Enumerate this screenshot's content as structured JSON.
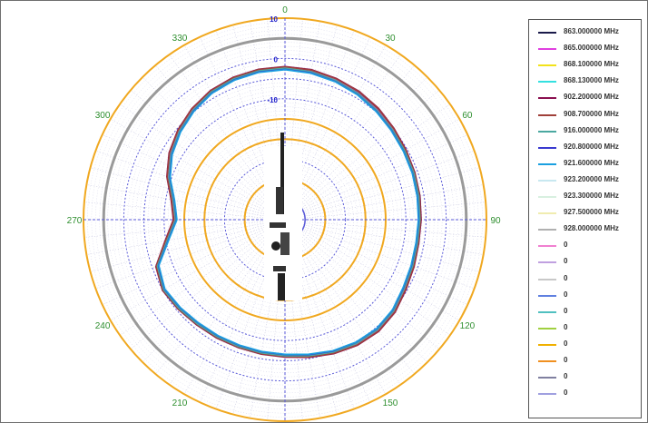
{
  "chart_data": {
    "type": "polar-line",
    "angle_labels": [
      {
        "angle": 0,
        "text": "0"
      },
      {
        "angle": 30,
        "text": "30"
      },
      {
        "angle": 60,
        "text": "60"
      },
      {
        "angle": 90,
        "text": "90"
      },
      {
        "angle": 120,
        "text": "120"
      },
      {
        "angle": 150,
        "text": "150"
      },
      {
        "angle": 180,
        "text": "180"
      },
      {
        "angle": 210,
        "text": "210"
      },
      {
        "angle": 240,
        "text": "240"
      },
      {
        "angle": 270,
        "text": "270"
      },
      {
        "angle": 300,
        "text": "300"
      },
      {
        "angle": 330,
        "text": "330"
      }
    ],
    "radial_labels": [
      "10",
      "0",
      "-10"
    ],
    "radial_range": [
      -40,
      10
    ],
    "grid": true,
    "legend_position": "right",
    "series": [
      {
        "name": "863.000000 MHz",
        "color": "#1a1a4a",
        "values": [
          -2.2,
          -2.5,
          -3.0,
          -3.5,
          -4.3,
          -5.0,
          -5.5,
          -5.8,
          -6.0,
          -6.3,
          -6.4,
          -6.0,
          -5.5,
          -4.5,
          -4.0,
          -4.3,
          -4.8,
          -5.5,
          -6.0,
          -6.2,
          -6.3,
          -6.2,
          -6.0,
          -5.5,
          -5.0,
          -6.0,
          -10.0,
          -12.5,
          -11.5,
          -9.0,
          -7.0,
          -5.5,
          -4.2,
          -3.2,
          -2.6,
          -2.3
        ]
      },
      {
        "name": "865.000000 MHz",
        "color": "#e040e0",
        "values": [
          -2.3,
          -2.6,
          -3.1,
          -3.7,
          -4.4,
          -5.1,
          -5.6,
          -5.9,
          -6.2,
          -6.4,
          -6.5,
          -6.2,
          -5.7,
          -4.7,
          -4.2,
          -4.4,
          -4.9,
          -5.6,
          -6.1,
          -6.3,
          -6.4,
          -6.3,
          -6.1,
          -5.6,
          -5.1,
          -6.2,
          -10.2,
          -12.7,
          -11.7,
          -9.2,
          -7.2,
          -5.7,
          -4.4,
          -3.3,
          -2.7,
          -2.4
        ]
      },
      {
        "name": "868.100000 MHz",
        "color": "#f2e21a",
        "values": [
          -2.5,
          -2.8,
          -3.3,
          -3.9,
          -4.6,
          -5.3,
          -5.8,
          -6.1,
          -6.4,
          -6.6,
          -6.7,
          -6.4,
          -5.9,
          -4.9,
          -4.4,
          -4.6,
          -5.1,
          -5.8,
          -6.3,
          -6.5,
          -6.6,
          -6.5,
          -6.3,
          -5.8,
          -5.3,
          -6.4,
          -10.4,
          -12.9,
          -11.9,
          -9.4,
          -7.4,
          -5.9,
          -4.6,
          -3.5,
          -2.9,
          -2.6
        ]
      },
      {
        "name": "868.130000 MHz",
        "color": "#34e0e0",
        "values": [
          -2.6,
          -2.9,
          -3.4,
          -4.0,
          -4.7,
          -5.4,
          -5.9,
          -6.2,
          -6.5,
          -6.7,
          -6.8,
          -6.5,
          -6.0,
          -5.0,
          -4.5,
          -4.7,
          -5.2,
          -5.9,
          -6.4,
          -6.6,
          -6.7,
          -6.6,
          -6.4,
          -5.9,
          -5.4,
          -6.5,
          -10.5,
          -13.0,
          -12.0,
          -9.5,
          -7.5,
          -6.0,
          -4.7,
          -3.6,
          -3.0,
          -2.7
        ]
      },
      {
        "name": "902.200000 MHz",
        "color": "#8a1050",
        "values": [
          -2.0,
          -2.2,
          -2.7,
          -3.2,
          -3.9,
          -4.7,
          -5.3,
          -5.7,
          -6.0,
          -6.2,
          -6.3,
          -5.9,
          -5.3,
          -4.3,
          -3.8,
          -4.0,
          -4.6,
          -5.3,
          -5.9,
          -6.1,
          -6.2,
          -6.1,
          -5.9,
          -5.4,
          -4.9,
          -5.9,
          -9.8,
          -12.3,
          -11.3,
          -8.8,
          -6.8,
          -5.3,
          -4.0,
          -3.0,
          -2.4,
          -2.1
        ]
      },
      {
        "name": "908.700000 MHz",
        "color": "#a0403a",
        "values": [
          -2.1,
          -2.3,
          -2.8,
          -3.3,
          -4.0,
          -4.8,
          -5.4,
          -5.8,
          -6.1,
          -6.3,
          -6.4,
          -6.0,
          -5.4,
          -4.4,
          -3.9,
          -4.1,
          -4.7,
          -5.4,
          -6.0,
          -6.2,
          -6.3,
          -6.2,
          -6.0,
          -5.5,
          -5.0,
          -6.0,
          -9.9,
          -12.4,
          -11.4,
          -8.9,
          -6.9,
          -5.4,
          -4.1,
          -3.1,
          -2.5,
          -2.2
        ]
      },
      {
        "name": "916.000000 MHz",
        "color": "#4aa8a0",
        "values": [
          -2.4,
          -2.7,
          -3.2,
          -3.8,
          -4.5,
          -5.2,
          -5.7,
          -6.0,
          -6.3,
          -6.5,
          -6.6,
          -6.3,
          -5.8,
          -4.8,
          -4.3,
          -4.5,
          -5.0,
          -5.7,
          -6.2,
          -6.4,
          -6.5,
          -6.4,
          -6.2,
          -5.7,
          -5.2,
          -6.3,
          -10.3,
          -12.8,
          -11.8,
          -9.3,
          -7.3,
          -5.8,
          -4.5,
          -3.4,
          -2.8,
          -2.5
        ]
      },
      {
        "name": "920.800000 MHz",
        "color": "#3a3ad0",
        "values": [
          -2.7,
          -3.0,
          -3.5,
          -4.1,
          -4.8,
          -5.5,
          -6.0,
          -6.3,
          -6.6,
          -6.8,
          -6.9,
          -6.6,
          -6.1,
          -5.1,
          -4.6,
          -4.8,
          -5.3,
          -6.0,
          -6.5,
          -6.7,
          -6.8,
          -6.7,
          -6.5,
          -6.0,
          -5.5,
          -6.6,
          -10.6,
          -13.1,
          -12.1,
          -9.6,
          -7.6,
          -6.1,
          -4.8,
          -3.7,
          -3.1,
          -2.8
        ]
      },
      {
        "name": "921.600000 MHz",
        "color": "#1aa0e0",
        "values": [
          -2.8,
          -3.1,
          -3.6,
          -4.2,
          -4.9,
          -5.6,
          -6.1,
          -6.4,
          -6.7,
          -6.9,
          -7.0,
          -6.7,
          -6.2,
          -5.2,
          -4.7,
          -4.9,
          -5.4,
          -6.1,
          -6.6,
          -6.8,
          -6.9,
          -6.8,
          -6.6,
          -6.1,
          -5.6,
          -6.7,
          -10.7,
          -13.2,
          -12.2,
          -9.7,
          -7.7,
          -6.2,
          -4.9,
          -3.8,
          -3.2,
          -2.9
        ]
      },
      {
        "name": "923.200000 MHz",
        "color": "#c8e8f0",
        "values": []
      },
      {
        "name": "923.300000 MHz",
        "color": "#d8f0e0",
        "values": []
      },
      {
        "name": "927.500000 MHz",
        "color": "#f0ecb0",
        "values": []
      },
      {
        "name": "928.000000 MHz",
        "color": "#b0b0b0",
        "values": []
      },
      {
        "name": "0",
        "color": "#f080d0",
        "values": []
      },
      {
        "name": "0",
        "color": "#c0a0e0",
        "values": []
      },
      {
        "name": "0",
        "color": "#c8c8c8",
        "values": []
      },
      {
        "name": "0",
        "color": "#6080e0",
        "values": []
      },
      {
        "name": "0",
        "color": "#50c0c0",
        "values": []
      },
      {
        "name": "0",
        "color": "#a0d040",
        "values": []
      },
      {
        "name": "0",
        "color": "#f0b000",
        "values": []
      },
      {
        "name": "0",
        "color": "#f09020",
        "values": []
      },
      {
        "name": "0",
        "color": "#8080a0",
        "values": []
      },
      {
        "name": "0",
        "color": "#a0a0e0",
        "values": []
      }
    ]
  },
  "colors": {
    "orange_ring": "#f0a820",
    "gray_ring": "#9a9a9a",
    "blue_ring": "#5a5ad8",
    "spoke": "#b8b8d8",
    "angle_text": "#2f8f2f",
    "radial_text": "#2222cc"
  }
}
